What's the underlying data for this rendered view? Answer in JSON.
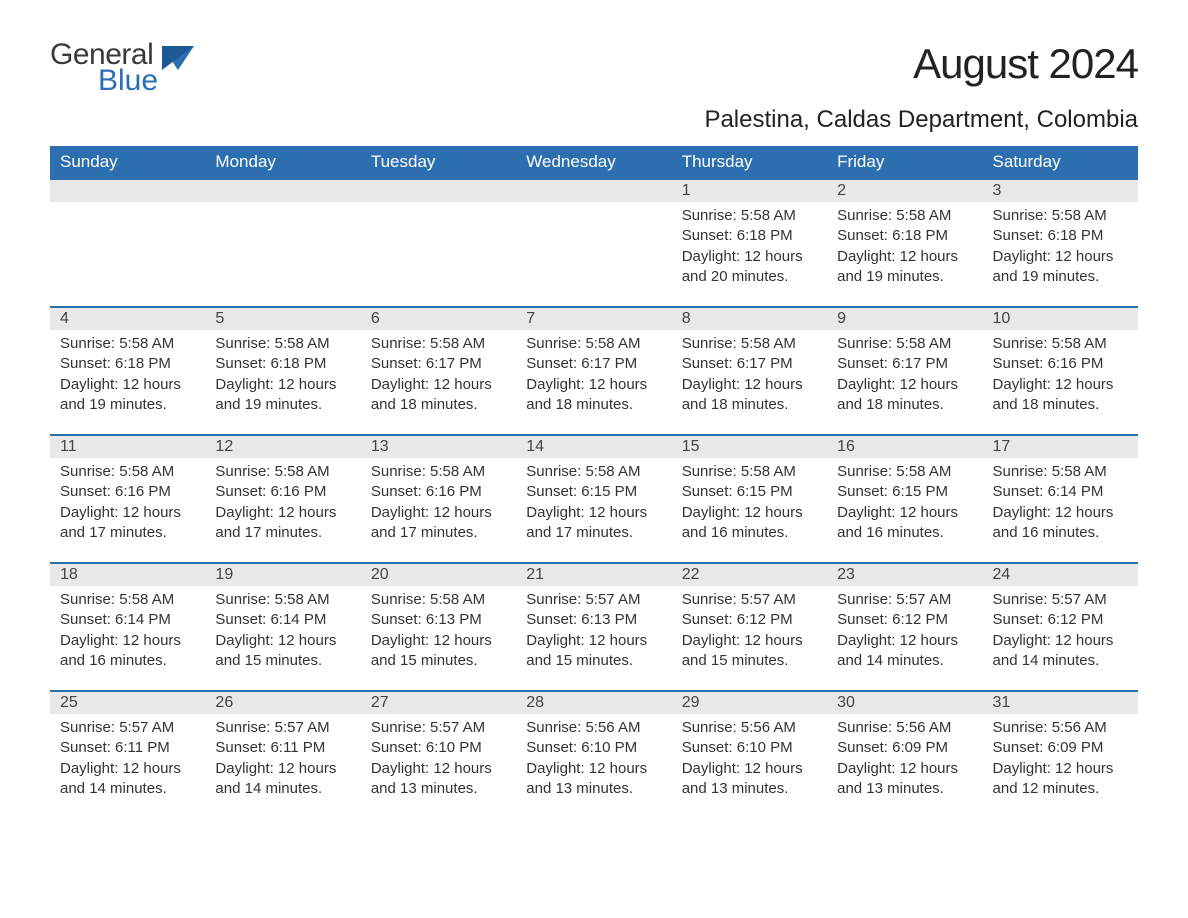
{
  "logo": {
    "word1": "General",
    "word2": "Blue"
  },
  "title": "August 2024",
  "location": "Palestina, Caldas Department, Colombia",
  "style": {
    "header_bg": "#2c6fb0",
    "header_text": "#ffffff",
    "daynum_bg": "#e8e8e8",
    "row_border": "#2c6fb0",
    "body_text": "#333333",
    "month_title_fontsize": 42,
    "location_fontsize": 24,
    "dayname_fontsize": 17,
    "daynum_fontsize": 16,
    "cell_fontsize": 15,
    "columns": 7
  },
  "day_names": [
    "Sunday",
    "Monday",
    "Tuesday",
    "Wednesday",
    "Thursday",
    "Friday",
    "Saturday"
  ],
  "weeks": [
    [
      null,
      null,
      null,
      null,
      {
        "n": "1",
        "sunrise": "5:58 AM",
        "sunset": "6:18 PM",
        "daylight": "12 hours and 20 minutes."
      },
      {
        "n": "2",
        "sunrise": "5:58 AM",
        "sunset": "6:18 PM",
        "daylight": "12 hours and 19 minutes."
      },
      {
        "n": "3",
        "sunrise": "5:58 AM",
        "sunset": "6:18 PM",
        "daylight": "12 hours and 19 minutes."
      }
    ],
    [
      {
        "n": "4",
        "sunrise": "5:58 AM",
        "sunset": "6:18 PM",
        "daylight": "12 hours and 19 minutes."
      },
      {
        "n": "5",
        "sunrise": "5:58 AM",
        "sunset": "6:18 PM",
        "daylight": "12 hours and 19 minutes."
      },
      {
        "n": "6",
        "sunrise": "5:58 AM",
        "sunset": "6:17 PM",
        "daylight": "12 hours and 18 minutes."
      },
      {
        "n": "7",
        "sunrise": "5:58 AM",
        "sunset": "6:17 PM",
        "daylight": "12 hours and 18 minutes."
      },
      {
        "n": "8",
        "sunrise": "5:58 AM",
        "sunset": "6:17 PM",
        "daylight": "12 hours and 18 minutes."
      },
      {
        "n": "9",
        "sunrise": "5:58 AM",
        "sunset": "6:17 PM",
        "daylight": "12 hours and 18 minutes."
      },
      {
        "n": "10",
        "sunrise": "5:58 AM",
        "sunset": "6:16 PM",
        "daylight": "12 hours and 18 minutes."
      }
    ],
    [
      {
        "n": "11",
        "sunrise": "5:58 AM",
        "sunset": "6:16 PM",
        "daylight": "12 hours and 17 minutes."
      },
      {
        "n": "12",
        "sunrise": "5:58 AM",
        "sunset": "6:16 PM",
        "daylight": "12 hours and 17 minutes."
      },
      {
        "n": "13",
        "sunrise": "5:58 AM",
        "sunset": "6:16 PM",
        "daylight": "12 hours and 17 minutes."
      },
      {
        "n": "14",
        "sunrise": "5:58 AM",
        "sunset": "6:15 PM",
        "daylight": "12 hours and 17 minutes."
      },
      {
        "n": "15",
        "sunrise": "5:58 AM",
        "sunset": "6:15 PM",
        "daylight": "12 hours and 16 minutes."
      },
      {
        "n": "16",
        "sunrise": "5:58 AM",
        "sunset": "6:15 PM",
        "daylight": "12 hours and 16 minutes."
      },
      {
        "n": "17",
        "sunrise": "5:58 AM",
        "sunset": "6:14 PM",
        "daylight": "12 hours and 16 minutes."
      }
    ],
    [
      {
        "n": "18",
        "sunrise": "5:58 AM",
        "sunset": "6:14 PM",
        "daylight": "12 hours and 16 minutes."
      },
      {
        "n": "19",
        "sunrise": "5:58 AM",
        "sunset": "6:14 PM",
        "daylight": "12 hours and 15 minutes."
      },
      {
        "n": "20",
        "sunrise": "5:58 AM",
        "sunset": "6:13 PM",
        "daylight": "12 hours and 15 minutes."
      },
      {
        "n": "21",
        "sunrise": "5:57 AM",
        "sunset": "6:13 PM",
        "daylight": "12 hours and 15 minutes."
      },
      {
        "n": "22",
        "sunrise": "5:57 AM",
        "sunset": "6:12 PM",
        "daylight": "12 hours and 15 minutes."
      },
      {
        "n": "23",
        "sunrise": "5:57 AM",
        "sunset": "6:12 PM",
        "daylight": "12 hours and 14 minutes."
      },
      {
        "n": "24",
        "sunrise": "5:57 AM",
        "sunset": "6:12 PM",
        "daylight": "12 hours and 14 minutes."
      }
    ],
    [
      {
        "n": "25",
        "sunrise": "5:57 AM",
        "sunset": "6:11 PM",
        "daylight": "12 hours and 14 minutes."
      },
      {
        "n": "26",
        "sunrise": "5:57 AM",
        "sunset": "6:11 PM",
        "daylight": "12 hours and 14 minutes."
      },
      {
        "n": "27",
        "sunrise": "5:57 AM",
        "sunset": "6:10 PM",
        "daylight": "12 hours and 13 minutes."
      },
      {
        "n": "28",
        "sunrise": "5:56 AM",
        "sunset": "6:10 PM",
        "daylight": "12 hours and 13 minutes."
      },
      {
        "n": "29",
        "sunrise": "5:56 AM",
        "sunset": "6:10 PM",
        "daylight": "12 hours and 13 minutes."
      },
      {
        "n": "30",
        "sunrise": "5:56 AM",
        "sunset": "6:09 PM",
        "daylight": "12 hours and 13 minutes."
      },
      {
        "n": "31",
        "sunrise": "5:56 AM",
        "sunset": "6:09 PM",
        "daylight": "12 hours and 12 minutes."
      }
    ]
  ],
  "labels": {
    "sunrise": "Sunrise:",
    "sunset": "Sunset:",
    "daylight": "Daylight:"
  }
}
